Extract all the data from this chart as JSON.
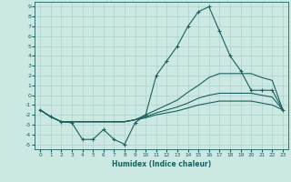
{
  "xlabel": "Humidex (Indice chaleur)",
  "xlim": [
    -0.5,
    23.5
  ],
  "ylim": [
    -5.5,
    9.5
  ],
  "xticks": [
    0,
    1,
    2,
    3,
    4,
    5,
    6,
    7,
    8,
    9,
    10,
    11,
    12,
    13,
    14,
    15,
    16,
    17,
    18,
    19,
    20,
    21,
    22,
    23
  ],
  "yticks": [
    -5,
    -4,
    -3,
    -2,
    -1,
    0,
    1,
    2,
    3,
    4,
    5,
    6,
    7,
    8,
    9
  ],
  "bg_color": "#cce8e2",
  "grid_color": "#aed0ca",
  "line_color": "#1a6060",
  "line1_x": [
    0,
    1,
    2,
    3,
    4,
    5,
    6,
    7,
    8,
    9,
    10,
    11,
    12,
    13,
    14,
    15,
    16,
    17,
    18,
    19,
    20,
    21,
    22,
    23
  ],
  "line1_y": [
    -1.5,
    -2.2,
    -2.7,
    -2.8,
    -4.5,
    -4.5,
    -3.5,
    -4.5,
    -5.0,
    -2.8,
    -2.0,
    2.0,
    3.5,
    5.0,
    7.0,
    8.5,
    9.0,
    6.5,
    4.0,
    2.5,
    0.5,
    0.5,
    0.5,
    -1.5
  ],
  "line2_x": [
    0,
    1,
    2,
    3,
    4,
    5,
    6,
    7,
    8,
    9,
    10,
    11,
    12,
    13,
    14,
    15,
    16,
    17,
    18,
    19,
    20,
    21,
    22,
    23
  ],
  "line2_y": [
    -1.5,
    -2.2,
    -2.7,
    -2.7,
    -2.7,
    -2.7,
    -2.7,
    -2.7,
    -2.7,
    -2.5,
    -2.0,
    -1.5,
    -1.0,
    -0.5,
    0.3,
    1.0,
    1.8,
    2.2,
    2.2,
    2.2,
    2.2,
    1.8,
    1.5,
    -1.5
  ],
  "line3_x": [
    0,
    1,
    2,
    3,
    4,
    5,
    6,
    7,
    8,
    9,
    10,
    11,
    12,
    13,
    14,
    15,
    16,
    17,
    18,
    19,
    20,
    21,
    22,
    23
  ],
  "line3_y": [
    -1.5,
    -2.2,
    -2.7,
    -2.7,
    -2.7,
    -2.7,
    -2.7,
    -2.7,
    -2.7,
    -2.5,
    -2.2,
    -1.8,
    -1.5,
    -1.2,
    -0.8,
    -0.3,
    0.0,
    0.2,
    0.2,
    0.2,
    0.2,
    0.0,
    -0.2,
    -1.5
  ],
  "line4_x": [
    0,
    1,
    2,
    3,
    4,
    5,
    6,
    7,
    8,
    9,
    10,
    11,
    12,
    13,
    14,
    15,
    16,
    17,
    18,
    19,
    20,
    21,
    22,
    23
  ],
  "line4_y": [
    -1.5,
    -2.2,
    -2.7,
    -2.7,
    -2.7,
    -2.7,
    -2.7,
    -2.7,
    -2.7,
    -2.5,
    -2.3,
    -2.0,
    -1.8,
    -1.6,
    -1.3,
    -1.0,
    -0.8,
    -0.6,
    -0.6,
    -0.6,
    -0.6,
    -0.8,
    -1.0,
    -1.5
  ]
}
